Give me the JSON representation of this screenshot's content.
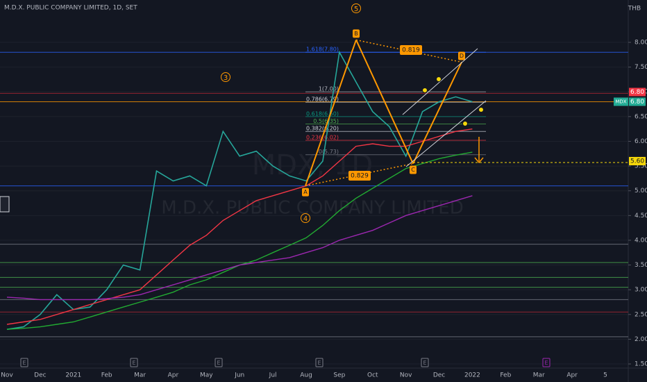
{
  "chart_data": {
    "type": "line",
    "title": "M.D.X. PUBLIC COMPANY LIMITED, 1D, SET",
    "currency": "THB",
    "watermark": "M.D.X. PUBLIC COMPANY LIMITED",
    "watermark_symbol": "MDX, 1D",
    "categories": [
      "Nov",
      null,
      "Dec",
      null,
      "2021",
      null,
      "Feb",
      null,
      "Mar",
      null,
      "Apr",
      null,
      "May",
      null,
      "Jun",
      null,
      "Jul",
      null,
      "Aug",
      null,
      "Sep",
      null,
      "Oct",
      null,
      "Nov",
      null,
      "Dec",
      null,
      "2022",
      null,
      "Feb",
      null,
      "Mar",
      null,
      "Apr",
      null,
      "5"
    ],
    "series": [
      {
        "color": "#26a69a",
        "values": [
          2.2,
          2.25,
          2.5,
          2.9,
          2.6,
          2.65,
          3.0,
          3.5,
          3.4,
          5.4,
          5.2,
          5.3,
          5.1,
          6.2,
          5.7,
          5.8,
          5.5,
          5.3,
          5.2,
          5.6,
          7.8,
          7.2,
          6.6,
          6.3,
          5.7,
          6.6,
          6.8,
          6.9,
          6.8,
          null,
          null,
          null,
          null,
          null,
          null,
          null,
          null
        ]
      },
      {
        "color": "#f23645",
        "values": [
          2.3,
          2.35,
          2.4,
          2.5,
          2.6,
          2.7,
          2.8,
          2.9,
          3.0,
          3.3,
          3.6,
          3.9,
          4.1,
          4.4,
          4.6,
          4.8,
          4.9,
          5.0,
          5.1,
          5.3,
          5.6,
          5.9,
          5.95,
          5.9,
          5.9,
          6.0,
          6.1,
          6.2,
          6.25,
          null,
          null,
          null,
          null,
          null,
          null,
          null,
          null
        ]
      },
      {
        "color": "#22ab32",
        "values": [
          2.2,
          2.22,
          2.25,
          2.3,
          2.35,
          2.45,
          2.55,
          2.65,
          2.75,
          2.85,
          2.95,
          3.1,
          3.2,
          3.35,
          3.5,
          3.6,
          3.75,
          3.9,
          4.05,
          4.3,
          4.6,
          4.85,
          5.05,
          5.25,
          5.45,
          5.55,
          5.65,
          5.72,
          5.78,
          null,
          null,
          null,
          null,
          null,
          null,
          null,
          null
        ]
      },
      {
        "color": "#9c27b0",
        "values": [
          2.85,
          2.83,
          2.8,
          2.8,
          2.8,
          2.8,
          2.82,
          2.85,
          2.9,
          3.0,
          3.1,
          3.2,
          3.3,
          3.4,
          3.5,
          3.55,
          3.6,
          3.65,
          3.75,
          3.85,
          4.0,
          4.1,
          4.2,
          4.35,
          4.5,
          4.6,
          4.7,
          4.8,
          4.9,
          null,
          null,
          null,
          null,
          null,
          null,
          null,
          null
        ]
      }
    ],
    "ylim": [
      1.2,
      8.8
    ],
    "yticks": [
      {
        "value": 1.5,
        "label": "1.50"
      },
      {
        "value": 2,
        "label": "2.00"
      },
      {
        "value": 2.5,
        "label": "2.50"
      },
      {
        "value": 3,
        "label": "3.00"
      },
      {
        "value": 3.5,
        "label": "3.50"
      },
      {
        "value": 4,
        "label": "4.00"
      },
      {
        "value": 4.5,
        "label": "4.50"
      },
      {
        "value": 5,
        "label": "5.00"
      },
      {
        "value": 5.5,
        "label": "5.50"
      },
      {
        "value": 6,
        "label": "6.00"
      },
      {
        "value": 6.5,
        "label": "6.50"
      },
      {
        "value": 7,
        "label": "7.00"
      },
      {
        "value": 7.5,
        "label": "7.50"
      },
      {
        "value": 8,
        "label": "8.00"
      }
    ],
    "grid": true,
    "hlines": [
      {
        "value": 7.8,
        "color": "#2962ff"
      },
      {
        "value": 6.97,
        "color": "#b22833"
      },
      {
        "value": 6.8,
        "color": "#ff9800"
      },
      {
        "value": 5.1,
        "color": "#2962ff"
      },
      {
        "value": 3.92,
        "color": "#787b86"
      },
      {
        "value": 3.55,
        "color": "#4caf50"
      },
      {
        "value": 3.25,
        "color": "#4caf50"
      },
      {
        "value": 3.05,
        "color": "#4caf50"
      },
      {
        "value": 2.8,
        "color": "#787b86"
      },
      {
        "value": 2.55,
        "color": "#b22833"
      },
      {
        "value": 2.05,
        "color": "#787b86"
      }
    ],
    "fib_levels": [
      {
        "value": 7.8,
        "label": "1.618(7.80)",
        "color": "#2962ff"
      },
      {
        "value": 7.0,
        "label": "1(7.00)",
        "color": "#b2b5be"
      },
      {
        "value": 6.79,
        "label": "0.786(6.79)",
        "color": "#d1d4dc"
      },
      {
        "value": 6.5,
        "label": "0.618(6.50)",
        "color": "#089981"
      },
      {
        "value": 6.35,
        "label": "0.5(6.35)",
        "color": "#4caf50"
      },
      {
        "value": 6.2,
        "label": "0.382(6.20)",
        "color": "#d1d4dc"
      },
      {
        "value": 6.02,
        "label": "0.236(6.02)",
        "color": "#f23645"
      },
      {
        "value": 5.73,
        "label": "0(5.73)",
        "color": "#787b86"
      }
    ],
    "pattern": [
      {
        "label": "A",
        "value": 5.1
      },
      {
        "label": "B",
        "value": 8.05
      },
      {
        "label": "C",
        "value": 5.55
      },
      {
        "label": "D",
        "value": 7.6
      }
    ],
    "ratios": [
      "0.819",
      "0.829"
    ],
    "waves": [
      "3",
      "4",
      "5"
    ],
    "price_tags": [
      {
        "label": "6.80",
        "value": 6.8,
        "color": "#f23645"
      },
      {
        "symbol": "MDX",
        "label": "6.80",
        "value": 6.8,
        "color": "#22ab94"
      },
      {
        "label": "5.60",
        "value": 5.6,
        "color": "#f5d70a"
      }
    ],
    "events": [
      "E",
      "E",
      "E",
      "E",
      "E",
      "E"
    ]
  }
}
